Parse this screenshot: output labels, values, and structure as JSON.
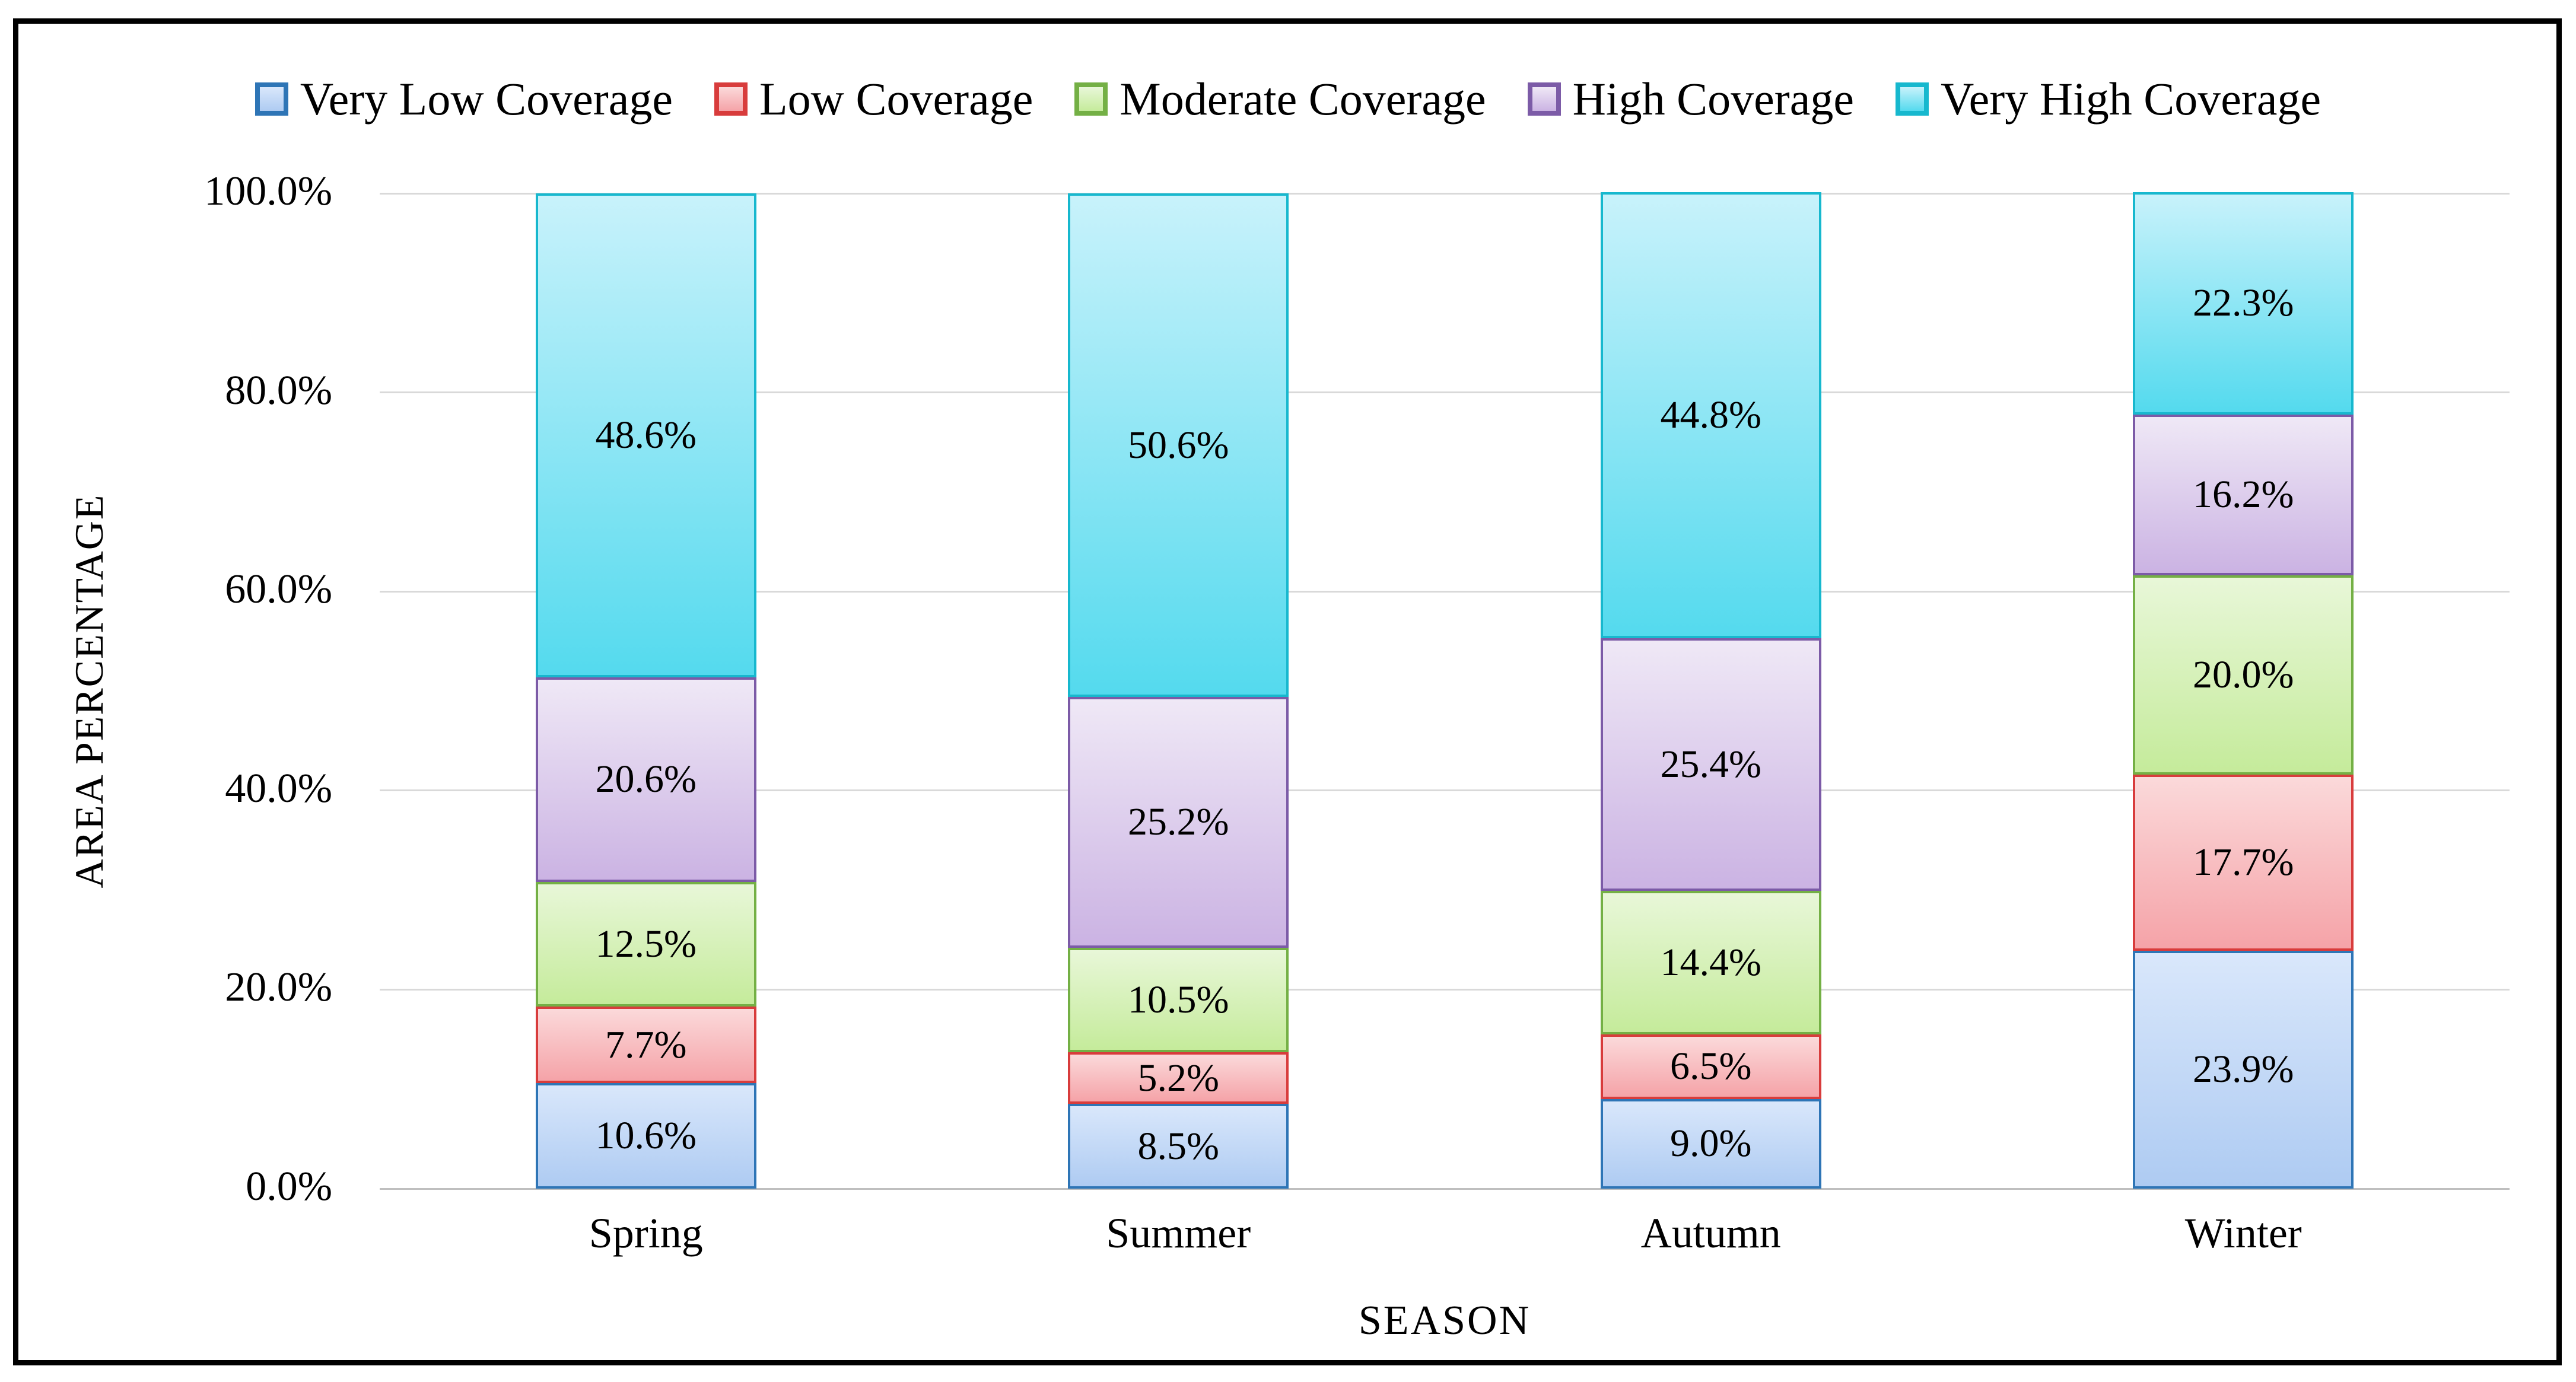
{
  "chart_data": {
    "type": "bar",
    "subtype": "stacked-100-percent",
    "title": "",
    "xlabel": "SEASON",
    "ylabel": "AREA PERCENTAGE",
    "categories": [
      "Spring",
      "Summer",
      "Autumn",
      "Winter"
    ],
    "series": [
      {
        "name": "Very Low Coverage",
        "values": [
          10.6,
          8.5,
          9.0,
          23.9
        ],
        "fill_top": "#D9E7FB",
        "fill_bottom": "#AECBF2",
        "border": "#2E75B6"
      },
      {
        "name": "Low Coverage",
        "values": [
          7.7,
          5.2,
          6.5,
          17.7
        ],
        "fill_top": "#FBD9DA",
        "fill_bottom": "#F5A3A8",
        "border": "#D83C3C"
      },
      {
        "name": "Moderate Coverage",
        "values": [
          12.5,
          10.5,
          14.4,
          20.0
        ],
        "fill_top": "#E8F7D8",
        "fill_bottom": "#C5EB9B",
        "border": "#74B045"
      },
      {
        "name": "High Coverage",
        "values": [
          20.6,
          25.2,
          25.4,
          16.2
        ],
        "fill_top": "#EFE8F6",
        "fill_bottom": "#CBB3E3",
        "border": "#7C5BA7"
      },
      {
        "name": "Very High Coverage",
        "values": [
          48.6,
          50.6,
          44.8,
          22.3
        ],
        "fill_top": "#C8F2FB",
        "fill_bottom": "#54DAEE",
        "border": "#17B8CE"
      }
    ],
    "yticks": [
      "0.0%",
      "20.0%",
      "40.0%",
      "60.0%",
      "80.0%",
      "100.0%"
    ],
    "ylim": [
      0,
      100
    ],
    "grid": "horizontal major gridlines every 20%",
    "grid_color": "#D9D9D9",
    "axis_line_color": "#BFBFBF",
    "figure_border_color": "#000000",
    "legend_position": "top",
    "value_label_suffix": "%"
  }
}
